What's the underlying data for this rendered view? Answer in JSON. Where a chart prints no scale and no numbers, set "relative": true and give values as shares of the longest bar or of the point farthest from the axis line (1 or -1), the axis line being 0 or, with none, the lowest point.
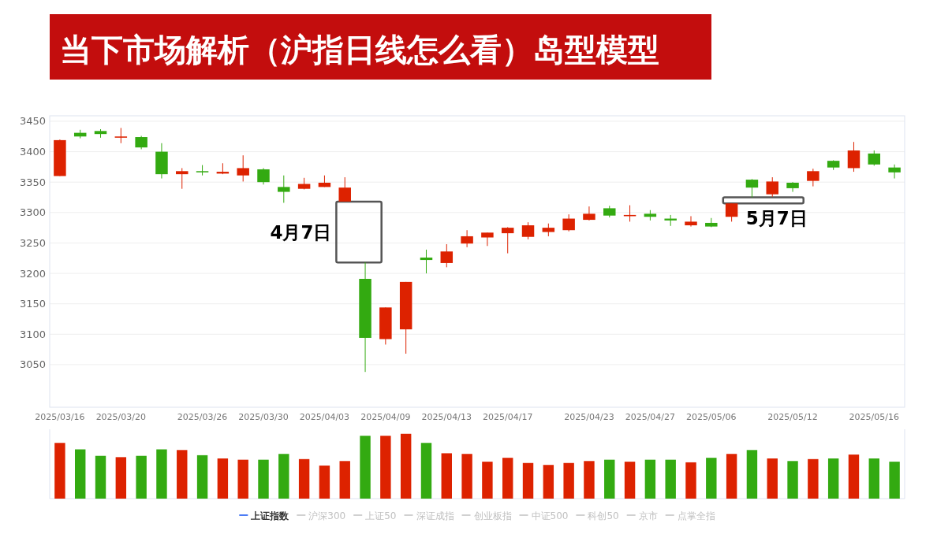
{
  "chart_data": [
    {
      "type": "candlestick",
      "title": "当下市场解析（沪指日线怎么看）岛型模型",
      "categories": [
        "2025/03/16",
        null,
        null,
        "2025/03/20",
        null,
        null,
        null,
        "2025/03/26",
        null,
        null,
        "2025/03/30",
        null,
        null,
        "2025/04/03",
        null,
        null,
        "2025/04/09",
        null,
        null,
        "2025/04/13",
        null,
        null,
        "2025/04/17",
        null,
        null,
        null,
        "2025/04/23",
        null,
        null,
        "2025/04/27",
        null,
        null,
        "2025/05/06",
        null,
        null,
        null,
        "2025/05/12",
        null,
        null,
        null,
        "2025/05/16",
        null
      ],
      "series": [
        {
          "name": "上证指数",
          "colors": [
            "#dd2200",
            "#33aa11",
            "#33aa11",
            "#dd2200",
            "#33aa11",
            "#33aa11",
            "#dd2200",
            "#33aa11",
            "#dd2200",
            "#dd2200",
            "#33aa11",
            "#33aa11",
            "#dd2200",
            "#dd2200",
            "#dd2200",
            "#33aa11",
            "#dd2200",
            "#dd2200",
            "#33aa11",
            "#dd2200",
            "#dd2200",
            "#dd2200",
            "#dd2200",
            "#dd2200",
            "#dd2200",
            "#dd2200",
            "#dd2200",
            "#33aa11",
            "#dd2200",
            "#33aa11",
            "#33aa11",
            "#dd2200",
            "#33aa11",
            "#dd2200",
            "#33aa11",
            "#dd2200",
            "#33aa11",
            "#dd2200",
            "#33aa11",
            "#dd2200",
            "#33aa11",
            "#33aa11"
          ],
          "ohlc": [
            [
              3360,
              3420,
              3360,
              3419
            ],
            [
              3431,
              3436,
              3422,
              3425
            ],
            [
              3434,
              3437,
              3423,
              3429
            ],
            [
              3423,
              3439,
              3414,
              3425
            ],
            [
              3424,
              3426,
              3404,
              3407
            ],
            [
              3400,
              3414,
              3356,
              3363
            ],
            [
              3363,
              3373,
              3339,
              3368
            ],
            [
              3368,
              3378,
              3361,
              3367
            ],
            [
              3364,
              3381,
              3363,
              3367
            ],
            [
              3361,
              3394,
              3351,
              3373
            ],
            [
              3371,
              3373,
              3346,
              3350
            ],
            [
              3342,
              3361,
              3316,
              3334
            ],
            [
              3339,
              3357,
              3338,
              3347
            ],
            [
              3342,
              3361,
              3342,
              3349
            ],
            [
              3318,
              3358,
              3318,
              3341
            ],
            [
              3191,
              3218,
              3038,
              3094
            ],
            [
              3092,
              3144,
              3083,
              3144
            ],
            [
              3108,
              3186,
              3068,
              3186
            ],
            [
              3226,
              3239,
              3200,
              3222
            ],
            [
              3217,
              3248,
              3210,
              3236
            ],
            [
              3249,
              3271,
              3243,
              3261
            ],
            [
              3259,
              3267,
              3245,
              3267
            ],
            [
              3266,
              3276,
              3233,
              3275
            ],
            [
              3260,
              3284,
              3256,
              3279
            ],
            [
              3268,
              3282,
              3261,
              3275
            ],
            [
              3271,
              3297,
              3269,
              3290
            ],
            [
              3288,
              3310,
              3287,
              3298
            ],
            [
              3307,
              3311,
              3292,
              3295
            ],
            [
              3294,
              3312,
              3285,
              3296
            ],
            [
              3298,
              3304,
              3287,
              3293
            ],
            [
              3290,
              3296,
              3278,
              3287
            ],
            [
              3279,
              3294,
              3277,
              3285
            ],
            [
              3283,
              3291,
              3276,
              3277
            ],
            [
              3293,
              3315,
              3285,
              3315
            ],
            [
              3354,
              3355,
              3325,
              3341
            ],
            [
              3330,
              3358,
              3326,
              3351
            ],
            [
              3349,
              3350,
              3334,
              3340
            ],
            [
              3352,
              3372,
              3343,
              3368
            ],
            [
              3385,
              3386,
              3370,
              3374
            ],
            [
              3373,
              3416,
              3367,
              3402
            ],
            [
              3397,
              3402,
              3377,
              3379
            ],
            [
              3374,
              3379,
              3356,
              3366
            ]
          ]
        }
      ],
      "ylim": [
        2980,
        3459
      ],
      "yticks": [
        3050,
        3100,
        3150,
        3200,
        3250,
        3300,
        3350,
        3400,
        3450
      ],
      "grid": "y",
      "legend": "bottom",
      "annotations": [
        "4月7日",
        "5月7日",
        "沪深300",
        "上证50",
        "深证成指",
        "创业板指",
        "中证500",
        "科创50",
        "京市",
        "点掌全指"
      ]
    },
    {
      "type": "bar",
      "relative": true,
      "categories": [
        null,
        null,
        null,
        null,
        null,
        null,
        null,
        null,
        null,
        null,
        null,
        null,
        null,
        null,
        null,
        null,
        null,
        null,
        null,
        null,
        null,
        null,
        null,
        null,
        null,
        null,
        null,
        null,
        null,
        null,
        null,
        null,
        null,
        null,
        null,
        null,
        null,
        null,
        null,
        null,
        null,
        null
      ],
      "values": [
        0.86,
        0.76,
        0.66,
        0.64,
        0.66,
        0.76,
        0.75,
        0.67,
        0.62,
        0.6,
        0.6,
        0.69,
        0.61,
        0.51,
        0.58,
        0.97,
        0.97,
        1,
        0.86,
        0.7,
        0.69,
        0.57,
        0.63,
        0.55,
        0.52,
        0.55,
        0.58,
        0.6,
        0.57,
        0.6,
        0.6,
        0.56,
        0.63,
        0.69,
        0.75,
        0.62,
        0.58,
        0.61,
        0.62,
        0.68,
        0.62,
        0.57
      ],
      "colors": [
        "#dd2200",
        "#33aa11",
        "#33aa11",
        "#dd2200",
        "#33aa11",
        "#33aa11",
        "#dd2200",
        "#33aa11",
        "#dd2200",
        "#dd2200",
        "#33aa11",
        "#33aa11",
        "#dd2200",
        "#dd2200",
        "#dd2200",
        "#33aa11",
        "#dd2200",
        "#dd2200",
        "#33aa11",
        "#dd2200",
        "#dd2200",
        "#dd2200",
        "#dd2200",
        "#dd2200",
        "#dd2200",
        "#dd2200",
        "#dd2200",
        "#33aa11",
        "#dd2200",
        "#33aa11",
        "#33aa11",
        "#dd2200",
        "#33aa11",
        "#dd2200",
        "#33aa11",
        "#dd2200",
        "#33aa11",
        "#dd2200",
        "#33aa11",
        "#dd2200",
        "#33aa11",
        "#33aa11"
      ]
    }
  ]
}
